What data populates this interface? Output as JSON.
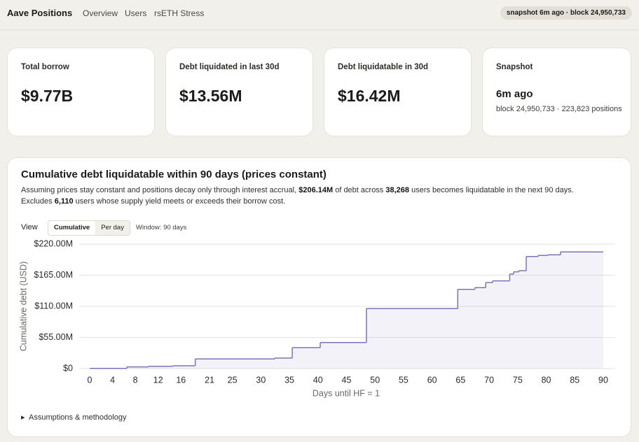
{
  "header": {
    "title": "Aave Positions",
    "nav": [
      "Overview",
      "Users",
      "rsETH Stress"
    ],
    "badge": "snapshot 6m ago · block 24,950,733"
  },
  "cards": [
    {
      "label": "Total borrow",
      "value": "$9.77B"
    },
    {
      "label": "Debt liquidated in last 30d",
      "value": "$13.56M"
    },
    {
      "label": "Debt liquidatable in 30d",
      "value": "$16.42M"
    },
    {
      "label": "Snapshot",
      "value": "6m ago",
      "sub": "block 24,950,733 · 223,823 positions"
    }
  ],
  "panel": {
    "title": "Cumulative debt liquidatable within 90 days (prices constant)",
    "description_1": [
      "Assuming prices stay constant and positions decay only through interest accrual, ",
      "$206.14M",
      " of debt across ",
      "38,268",
      " users becomes liquidatable in the next 90 days."
    ],
    "description_2": [
      "Excludes ",
      "6,110",
      " users whose supply yield meets or exceeds their borrow cost."
    ],
    "view_label": "View",
    "view_options": [
      "Cumulative",
      "Per day"
    ],
    "window": "Window: 90 days",
    "details": "Assumptions & methodology"
  },
  "chart_data": {
    "type": "step",
    "x_label": "Days until HF = 1",
    "y_label": "Cumulative debt (USD)",
    "x": [
      0,
      6.5,
      10.3,
      14.6,
      18.5,
      32.4,
      35.5,
      40.4,
      48.5,
      64.5,
      67.5,
      69.4,
      70.6,
      73.6,
      74.3,
      75.2,
      76.5,
      78.6,
      80.3,
      82.5
    ],
    "series": [
      {
        "name": "Cumulative",
        "color": "#7a74b6",
        "values": [
          0.3,
          3,
          4,
          5,
          17,
          18.5,
          37,
          46,
          106,
          140,
          143,
          152,
          155,
          167,
          171,
          173,
          198,
          200,
          201,
          206.14
        ]
      }
    ],
    "xlim": [
      0,
      90
    ],
    "xticks": [
      0,
      4,
      8,
      12,
      16,
      21,
      25,
      30,
      35,
      40,
      45,
      50,
      55,
      60,
      65,
      70,
      75,
      80,
      85,
      90
    ],
    "ylim": [
      0,
      220
    ],
    "yticks": [
      {
        "value": 0,
        "label": "$0"
      },
      {
        "value": 55,
        "label": "$55.00M"
      },
      {
        "value": 110,
        "label": "$110.00M"
      },
      {
        "value": 165,
        "label": "$165.00M"
      },
      {
        "value": 220,
        "label": "$220.00M"
      }
    ],
    "grid": true
  }
}
